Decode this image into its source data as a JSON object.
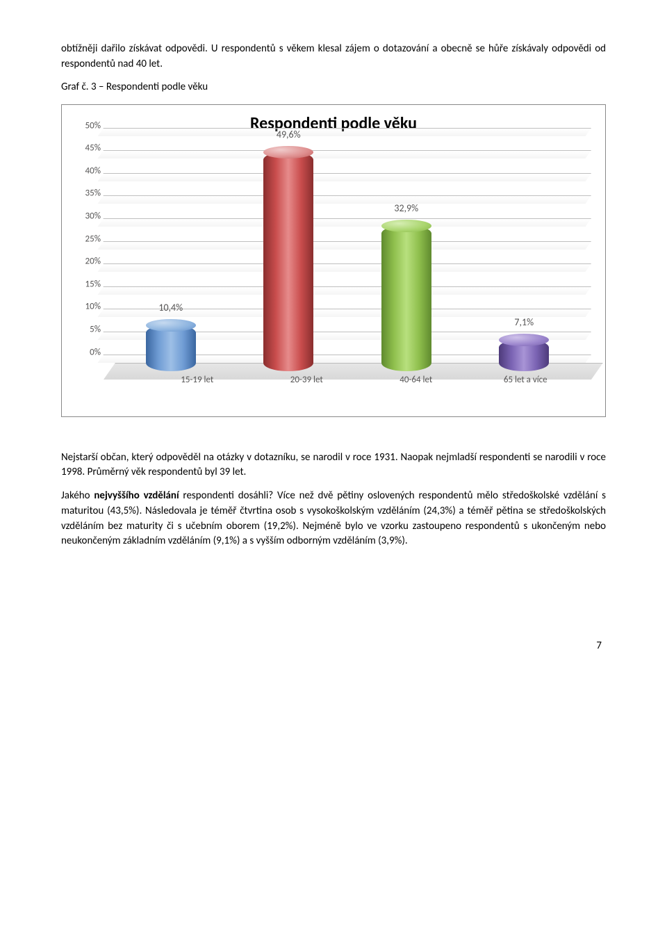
{
  "para1": "obtížněji dařilo získávat odpovědi. U respondentů s věkem klesal zájem o dotazování a obecně se hůře získávaly odpovědi od respondentů nad 40 let.",
  "caption": "Graf č. 3 – Respondenti podle věku",
  "chart": {
    "title": "Respondenti podle věku",
    "categories": [
      "15-19 let",
      "20-39 let",
      "40-64 let",
      "65 let a více"
    ],
    "values": [
      10.4,
      49.6,
      32.9,
      7.1
    ],
    "value_labels": [
      "10,4%",
      "49,6%",
      "32,9%",
      "7,1%"
    ],
    "colors_body": [
      "linear-gradient(to right, #3a66a0 0%, #6f9cd4 25%, #9dbfe6 50%, #6f9cd4 75%, #3a66a0 100%)",
      "linear-gradient(to right, #8a2e2e 0%, #c94d4d 25%, #e68b8b 50%, #c94d4d 75%, #8a2e2e 100%)",
      "linear-gradient(to right, #5f8a2e 0%, #8fbf4d 25%, #b8e07e 50%, #8fbf4d 75%, #5f8a2e 100%)",
      "linear-gradient(to right, #4d3a7a 0%, #7a63b3 25%, #a894d6 50%, #7a63b3 75%, #4d3a7a 100%)"
    ],
    "colors_top": [
      "radial-gradient(ellipse at 35% 30%, #c6daf0 0%, #8cb3df 60%, #5f8cc7 100%)",
      "radial-gradient(ellipse at 35% 30%, #f0cccc 0%, #de8d8d 60%, #c05b5b 100%)",
      "radial-gradient(ellipse at 35% 30%, #d6eeb3 0%, #a8d46b 60%, #84b347 100%)",
      "radial-gradient(ellipse at 35% 30%, #cfc2ea 0%, #9a84cc 60%, #7460a8 100%)"
    ],
    "ymax": 50,
    "ticks": [
      "0%",
      "5%",
      "10%",
      "15%",
      "20%",
      "25%",
      "30%",
      "35%",
      "40%",
      "45%",
      "50%"
    ]
  },
  "para2a": "Nejstarší občan, který odpověděl na otázky v dotazníku, se narodil v roce 1931. Naopak nejmladší respondenti se narodili v roce 1998. Průměrný věk respondentů byl 39 let.",
  "para2b_lead": "Jakého ",
  "para2b_bold": "nejvyššího vzdělání",
  "para2b_rest": " respondenti dosáhli? Více než dvě pětiny oslovených respondentů mělo středoškolské vzdělání s maturitou (43,5%). Následovala je téměř čtvrtina osob s vysokoškolským vzděláním (24,3%) a téměř pětina se středoškolských vzděláním bez maturity či s učebním oborem (19,2%). Nejméně bylo ve vzorku zastoupeno respondentů s ukončeným nebo neukončeným základním vzděláním (9,1%) a s vyšším odborným vzděláním (3,9%).",
  "page_number": "7"
}
